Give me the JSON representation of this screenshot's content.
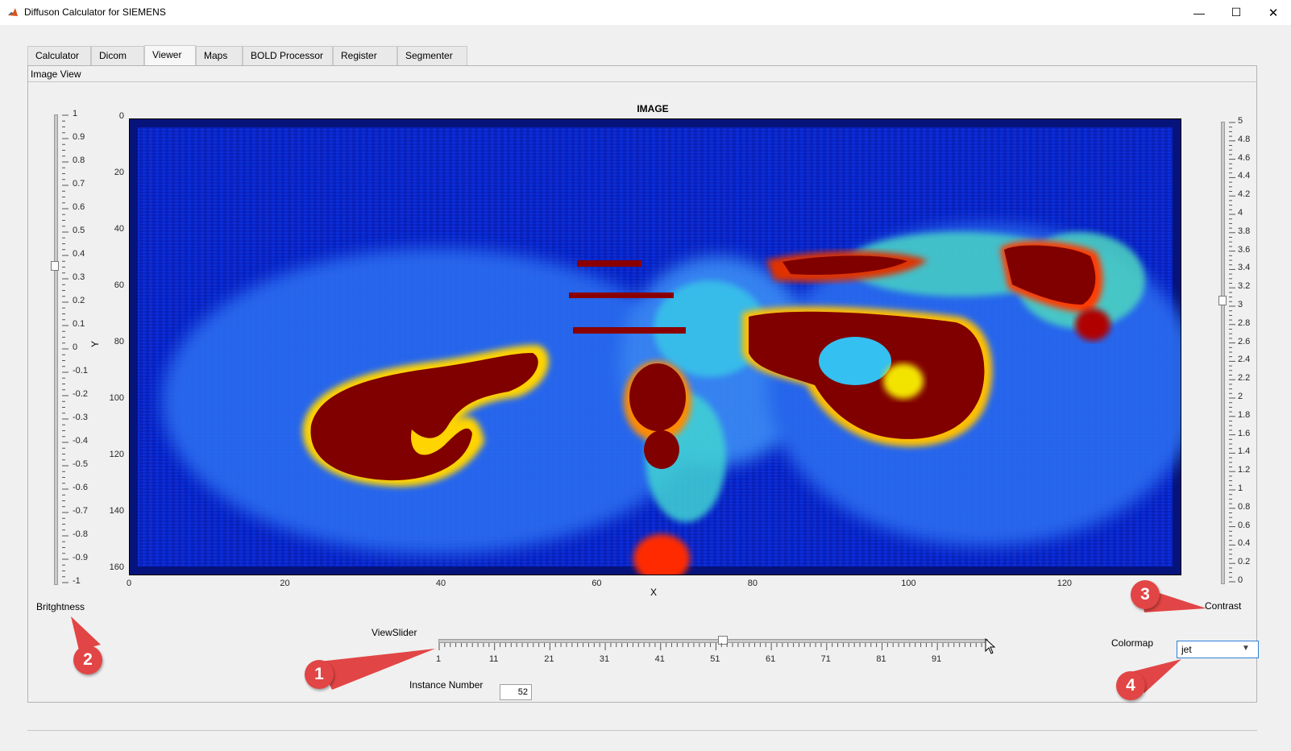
{
  "window": {
    "title": "Diffuson Calculator for SIEMENS"
  },
  "window_controls": {
    "minimize": "—",
    "maximize": "☐",
    "close": "✕"
  },
  "tabs": [
    {
      "label": "Calculator"
    },
    {
      "label": "Dicom"
    },
    {
      "label": "Viewer",
      "active": true
    },
    {
      "label": "Maps"
    },
    {
      "label": "BOLD Processor"
    },
    {
      "label": "Register"
    },
    {
      "label": "Segmenter"
    }
  ],
  "panel": {
    "title": "Image View"
  },
  "image_axes": {
    "title": "IMAGE",
    "xlabel": "X",
    "ylabel": "Y",
    "x_ticks": [
      "0",
      "20",
      "40",
      "60",
      "80",
      "100",
      "120"
    ],
    "y_ticks": [
      "0",
      "20",
      "40",
      "60",
      "80",
      "100",
      "120",
      "140",
      "160"
    ],
    "x_range": [
      0,
      135
    ],
    "y_range": [
      0,
      160
    ],
    "colormap": "jet"
  },
  "brightness": {
    "label": "Britghtness",
    "min": -1,
    "max": 1,
    "value": 0.35,
    "ticks": [
      "1",
      "0.9",
      "0.8",
      "0.7",
      "0.6",
      "0.5",
      "0.4",
      "0.3",
      "0.2",
      "0.1",
      "0",
      "-0.1",
      "-0.2",
      "-0.3",
      "-0.4",
      "-0.5",
      "-0.6",
      "-0.7",
      "-0.8",
      "-0.9",
      "-1"
    ]
  },
  "contrast": {
    "label": "Contrast",
    "min": 0,
    "max": 5,
    "value": 3.1,
    "ticks": [
      "5",
      "4.8",
      "4.6",
      "4.4",
      "4.2",
      "4",
      "3.8",
      "3.6",
      "3.4",
      "3.2",
      "3",
      "2.8",
      "2.6",
      "2.4",
      "2.2",
      "2",
      "1.8",
      "1.6",
      "1.4",
      "1.2",
      "1",
      "0.8",
      "0.6",
      "0.4",
      "0.2",
      "0"
    ]
  },
  "view_slider": {
    "label": "ViewSlider",
    "min": 1,
    "max": 100,
    "value": 52,
    "ticks": [
      "1",
      "11",
      "21",
      "31",
      "41",
      "51",
      "61",
      "71",
      "81",
      "91"
    ]
  },
  "instance": {
    "label": "Instance Number",
    "value": "52"
  },
  "colormap_control": {
    "label": "Colormap",
    "selected": "jet"
  },
  "callouts": [
    "1",
    "2",
    "3",
    "4"
  ],
  "colors": {
    "badge": "#e24545",
    "accent": "#2f7fd8"
  }
}
